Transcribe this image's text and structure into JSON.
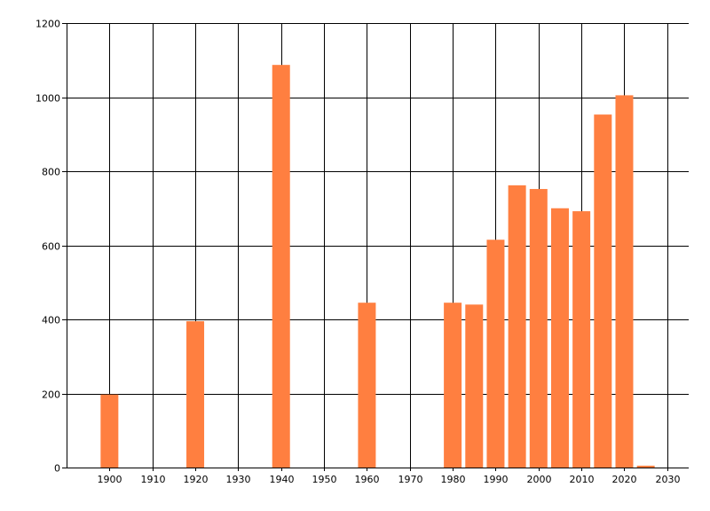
{
  "chart_data": {
    "type": "bar",
    "x": [
      1900,
      1920,
      1940,
      1960,
      1980,
      1985,
      1990,
      1995,
      2000,
      2005,
      2010,
      2015,
      2020,
      2025
    ],
    "values": [
      197,
      395,
      1087,
      445,
      445,
      440,
      615,
      762,
      752,
      700,
      692,
      953,
      1005,
      5
    ],
    "xlim": [
      1890,
      2035
    ],
    "ylim": [
      0,
      1200
    ],
    "x_ticks": [
      "1900",
      "1910",
      "1920",
      "1930",
      "1940",
      "1950",
      "1960",
      "1970",
      "1980",
      "1990",
      "2000",
      "2010",
      "2020",
      "2030"
    ],
    "y_ticks": [
      "0",
      "200",
      "400",
      "600",
      "800",
      "1000",
      "1200"
    ],
    "grid": true,
    "legend": "none",
    "bar_color": "#FF7F40",
    "grid_color": "#000000"
  }
}
